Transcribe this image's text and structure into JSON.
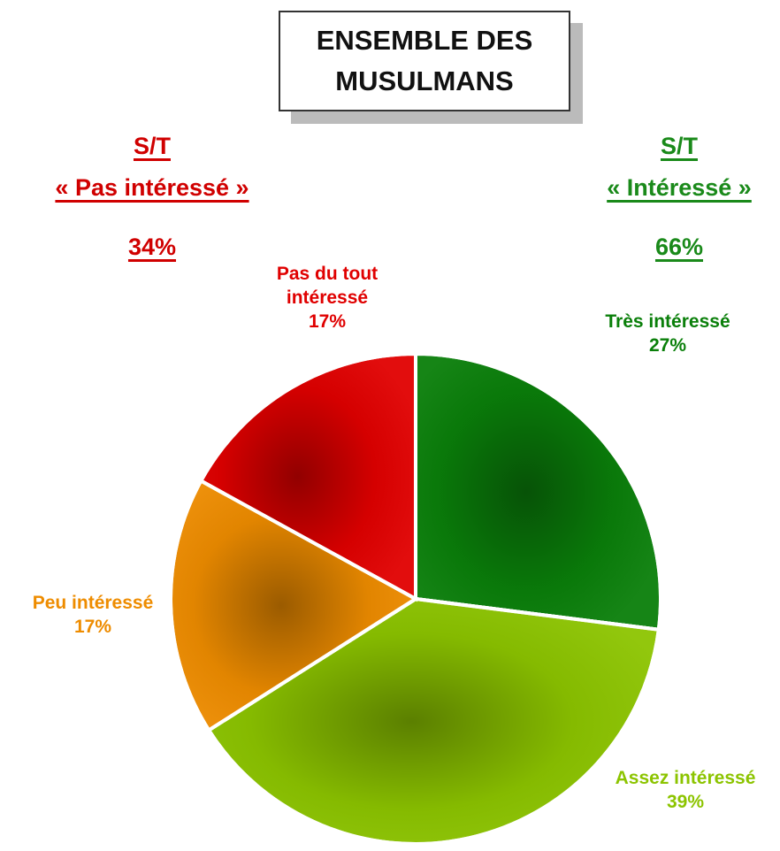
{
  "chart_data": {
    "type": "pie",
    "title": "ENSEMBLE DES MUSULMANS",
    "categories": [
      "Très intéressé",
      "Assez intéressé",
      "Peu intéressé",
      "Pas du tout intéressé"
    ],
    "values": [
      27,
      39,
      17,
      17
    ],
    "value_labels": [
      "27%",
      "39%",
      "17%",
      "17%"
    ],
    "colors": [
      "#0a7f0a",
      "#8cc400",
      "#ee8c00",
      "#e00000"
    ],
    "annotations": [
      {
        "heading": "S/T",
        "label": "« Pas intéressé »",
        "total": "34%",
        "color": "#d00000"
      },
      {
        "heading": "S/T",
        "label": "« Intéressé »",
        "total": "66%",
        "color": "#1a8a1a"
      }
    ]
  }
}
